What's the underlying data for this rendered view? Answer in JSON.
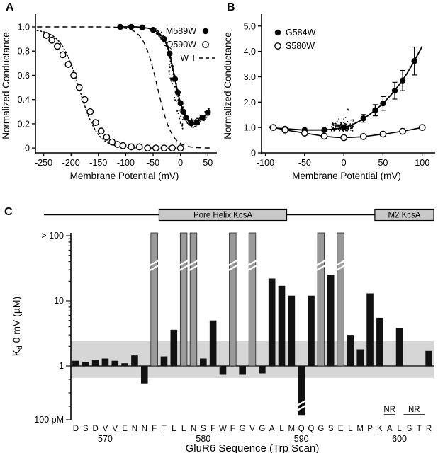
{
  "panels": {
    "a": {
      "label": "A"
    },
    "b": {
      "label": "B"
    },
    "c": {
      "label": "C"
    }
  },
  "chart_data": [
    {
      "panel": "A",
      "type": "line",
      "xlabel": "Membrane Potential (mV)",
      "ylabel": "Normalized Conductance",
      "xlim": [
        -265,
        60
      ],
      "ylim": [
        -0.04,
        1.07
      ],
      "x_ticks": [
        -250,
        -200,
        -150,
        -100,
        -50,
        0,
        50
      ],
      "x_tick_labels": [
        "-250",
        "-200",
        "-150",
        "-100",
        "-50",
        "0",
        "50"
      ],
      "y_ticks": [
        0,
        0.2,
        0.4,
        0.6,
        0.8,
        1.0
      ],
      "y_tick_labels": [
        "0",
        "0.2",
        "0.4",
        "0.6",
        "0.8",
        "1.0"
      ],
      "legend": [
        {
          "label": "M589W",
          "marker": "filled-circle"
        },
        {
          "label": "Q590W",
          "marker": "open-circle"
        },
        {
          "label": "W T",
          "marker": "dashed-line"
        }
      ],
      "series": [
        {
          "name": "WT",
          "style": "dashed",
          "fit": {
            "gmax": 1.0,
            "vhalf": -42,
            "k": 13,
            "from": -262,
            "to": 56
          }
        },
        {
          "name": "Q590W",
          "style": "dotted",
          "marker": "open-circle",
          "fit": {
            "gmax": 0.98,
            "vhalf": -185,
            "k": 17,
            "from": -262,
            "to": 5
          },
          "points": [
            [
              -245,
              0.93
            ],
            [
              -235,
              0.89
            ],
            [
              -225,
              0.84
            ],
            [
              -215,
              0.77
            ],
            [
              -205,
              0.69
            ],
            [
              -195,
              0.6
            ],
            [
              -185,
              0.5
            ],
            [
              -175,
              0.4
            ],
            [
              -165,
              0.3
            ],
            [
              -155,
              0.21
            ],
            [
              -145,
              0.14
            ],
            [
              -135,
              0.09
            ],
            [
              -125,
              0.05
            ],
            [
              -115,
              0.03
            ],
            [
              -105,
              0.02
            ],
            [
              -90,
              0.01
            ],
            [
              -75,
              0.01
            ],
            [
              -60,
              0.0
            ],
            [
              -45,
              0.0
            ],
            [
              -30,
              0.0
            ],
            [
              -15,
              0.0
            ],
            [
              0,
              0.0
            ]
          ]
        },
        {
          "name": "M589W",
          "style": "solid",
          "marker": "filled-circle",
          "line_points": [
            [
              -110,
              1.0
            ],
            [
              -100,
              1.0
            ],
            [
              -90,
              1.0
            ],
            [
              -80,
              1.0
            ],
            [
              -70,
              0.995
            ],
            [
              -60,
              0.99
            ],
            [
              -50,
              0.975
            ],
            [
              -45,
              0.965
            ],
            [
              -40,
              0.95
            ],
            [
              -35,
              0.93
            ],
            [
              -30,
              0.9
            ],
            [
              -25,
              0.85
            ],
            [
              -20,
              0.78
            ],
            [
              -15,
              0.68
            ],
            [
              -10,
              0.57
            ],
            [
              -5,
              0.46
            ],
            [
              0,
              0.37
            ],
            [
              5,
              0.3
            ],
            [
              10,
              0.25
            ],
            [
              15,
              0.22
            ],
            [
              20,
              0.205
            ],
            [
              25,
              0.2
            ],
            [
              30,
              0.21
            ],
            [
              35,
              0.23
            ],
            [
              40,
              0.25
            ],
            [
              45,
              0.27
            ],
            [
              50,
              0.29
            ]
          ],
          "points": [
            [
              -110,
              1.0
            ],
            [
              -90,
              1.0
            ],
            [
              -70,
              0.995
            ],
            [
              -50,
              0.975
            ],
            [
              -30,
              0.9
            ],
            [
              -20,
              0.78
            ],
            [
              -10,
              0.57
            ],
            [
              -5,
              0.46
            ],
            [
              0,
              0.37
            ],
            [
              5,
              0.3
            ],
            [
              10,
              0.25
            ],
            [
              20,
              0.205
            ],
            [
              30,
              0.21
            ],
            [
              40,
              0.25
            ],
            [
              50,
              0.29
            ]
          ]
        }
      ],
      "noise": {
        "seed": 17,
        "n": 150,
        "x_from": -44,
        "x_to": 54,
        "jitter": 0.035,
        "extra_n": 45,
        "extra_x_from": -22,
        "extra_x_to": 4,
        "extra_drop": 0.18
      }
    },
    {
      "panel": "B",
      "type": "line",
      "xlabel": "Membrane Potential (mV)",
      "ylabel": "Normalized Conductance",
      "xlim": [
        -105,
        112
      ],
      "ylim": [
        0,
        5.3
      ],
      "x_ticks": [
        -100,
        -50,
        0,
        50,
        100
      ],
      "x_tick_labels": [
        "-100",
        "-50",
        "0",
        "50",
        "100"
      ],
      "y_ticks": [
        0,
        1,
        2,
        3,
        4,
        5
      ],
      "y_tick_labels": [
        "0",
        "1.0",
        "2.0",
        "3.0",
        "4.0",
        "5.0"
      ],
      "legend": [
        {
          "label": "G584W",
          "marker": "filled-circle"
        },
        {
          "label": "S580W",
          "marker": "open-circle"
        }
      ],
      "series": [
        {
          "name": "G584W",
          "style": "solid",
          "marker": "filled-circle",
          "line_points": [
            [
              -95,
              1.0
            ],
            [
              -85,
              0.97
            ],
            [
              -75,
              0.95
            ],
            [
              -65,
              0.93
            ],
            [
              -55,
              0.91
            ],
            [
              -45,
              0.9
            ],
            [
              -35,
              0.9
            ],
            [
              -25,
              0.905
            ],
            [
              -15,
              0.93
            ],
            [
              -5,
              0.97
            ],
            [
              0,
              1.0
            ],
            [
              10,
              1.1
            ],
            [
              20,
              1.25
            ],
            [
              30,
              1.45
            ],
            [
              40,
              1.68
            ],
            [
              50,
              1.95
            ],
            [
              60,
              2.28
            ],
            [
              70,
              2.66
            ],
            [
              80,
              3.1
            ],
            [
              90,
              3.62
            ],
            [
              100,
              4.2
            ]
          ],
          "points": [
            [
              -90,
              1.0,
              0.07
            ],
            [
              -75,
              0.95,
              0.05
            ],
            [
              -50,
              0.9,
              0.05
            ],
            [
              -25,
              0.9,
              0.06
            ],
            [
              0,
              1.0,
              0.09
            ],
            [
              25,
              1.36,
              0.15
            ],
            [
              40,
              1.68,
              0.22
            ],
            [
              50,
              1.95,
              0.27
            ],
            [
              65,
              2.45,
              0.33
            ],
            [
              75,
              2.85,
              0.4
            ],
            [
              90,
              3.62,
              0.55
            ]
          ]
        },
        {
          "name": "S580W",
          "style": "solid",
          "marker": "open-circle",
          "line_points": [
            [
              -95,
              1.03
            ],
            [
              -90,
              1.0
            ],
            [
              -80,
              0.94
            ],
            [
              -70,
              0.88
            ],
            [
              -60,
              0.83
            ],
            [
              -50,
              0.78
            ],
            [
              -40,
              0.73
            ],
            [
              -30,
              0.68
            ],
            [
              -20,
              0.64
            ],
            [
              -10,
              0.61
            ],
            [
              0,
              0.6
            ],
            [
              10,
              0.61
            ],
            [
              20,
              0.63
            ],
            [
              30,
              0.66
            ],
            [
              40,
              0.7
            ],
            [
              50,
              0.74
            ],
            [
              60,
              0.78
            ],
            [
              70,
              0.83
            ],
            [
              80,
              0.88
            ],
            [
              90,
              0.94
            ],
            [
              100,
              1.0
            ]
          ],
          "points": [
            [
              -90,
              1.0
            ],
            [
              -75,
              0.9
            ],
            [
              -50,
              0.78
            ],
            [
              -25,
              0.66
            ],
            [
              0,
              0.6
            ],
            [
              25,
              0.645
            ],
            [
              50,
              0.74
            ],
            [
              75,
              0.85
            ],
            [
              100,
              1.0
            ]
          ]
        }
      ],
      "noise": {
        "seed": 29,
        "n": 130,
        "x_from": -16,
        "x_to": 13
      }
    },
    {
      "panel": "C",
      "type": "bar",
      "xlabel": "GluR6 Sequence (Trp Scan)",
      "ylabel_main": "K",
      "ylabel_sub": "d",
      "ylabel_rest": " 0 mV (µM)",
      "y_axis_labels": {
        "offscale": "> 100",
        "ten": "10",
        "one": "1",
        "bottom": "100 pM"
      },
      "band_kd": [
        0.13,
        2.4
      ],
      "schematic": {
        "boxes": [
          {
            "label": "Pore Helix KcsA",
            "from_index": 9,
            "to_index": 21
          },
          {
            "label": "M2 KcsA",
            "from_index": 31,
            "to_index": 36
          }
        ]
      },
      "nr_text": "NR",
      "nr_groups": [
        [
          32
        ],
        [
          34,
          35
        ]
      ],
      "position_labels": [
        {
          "text": "570",
          "index": 3
        },
        {
          "text": "580",
          "index": 13
        },
        {
          "text": "590",
          "index": 23
        },
        {
          "text": "600",
          "index": 33
        }
      ],
      "bars": [
        {
          "residue": "D",
          "position": 567,
          "kd_uM": 1.2
        },
        {
          "residue": "S",
          "position": 568,
          "kd_uM": 1.15
        },
        {
          "residue": "D",
          "position": 569,
          "kd_uM": 1.25
        },
        {
          "residue": "V",
          "position": 570,
          "kd_uM": 1.3
        },
        {
          "residue": "V",
          "position": 571,
          "kd_uM": 1.2
        },
        {
          "residue": "E",
          "position": 572,
          "kd_uM": 1.1
        },
        {
          "residue": "N",
          "position": 573,
          "kd_uM": 1.45
        },
        {
          "residue": "N",
          "position": 574,
          "kd_uM": 0.05
        },
        {
          "residue": "F",
          "position": 575,
          "offscale": true
        },
        {
          "residue": "T",
          "position": 576,
          "kd_uM": 1.4
        },
        {
          "residue": "L",
          "position": 577,
          "kd_uM": 3.6
        },
        {
          "residue": "L",
          "position": 578,
          "offscale": true
        },
        {
          "residue": "N",
          "position": 579,
          "offscale": true
        },
        {
          "residue": "S",
          "position": 580,
          "kd_uM": 1.3
        },
        {
          "residue": "F",
          "position": 581,
          "kd_uM": 5.0
        },
        {
          "residue": "W",
          "position": 582,
          "kd_uM": 0.22
        },
        {
          "residue": "F",
          "position": 583,
          "offscale": true
        },
        {
          "residue": "G",
          "position": 584,
          "kd_uM": 0.22
        },
        {
          "residue": "V",
          "position": 585,
          "offscale": true
        },
        {
          "residue": "G",
          "position": 586,
          "kd_uM": 0.28
        },
        {
          "residue": "A",
          "position": 587,
          "kd_uM": 22
        },
        {
          "residue": "L",
          "position": 588,
          "kd_uM": 17
        },
        {
          "residue": "M",
          "position": 589,
          "kd_uM": 12
        },
        {
          "residue": "Q",
          "position": 590,
          "kd_uM": 0.0002,
          "down_break": true
        },
        {
          "residue": "Q",
          "position": 591,
          "kd_uM": 12
        },
        {
          "residue": "G",
          "position": 592,
          "offscale": true
        },
        {
          "residue": "S",
          "position": 593,
          "kd_uM": 25
        },
        {
          "residue": "E",
          "position": 594,
          "offscale": true
        },
        {
          "residue": "L",
          "position": 595,
          "kd_uM": 3.0
        },
        {
          "residue": "M",
          "position": 596,
          "kd_uM": 1.8
        },
        {
          "residue": "P",
          "position": 597,
          "kd_uM": 13
        },
        {
          "residue": "K",
          "position": 598,
          "kd_uM": 5.5
        },
        {
          "residue": "A",
          "position": 599,
          "nr": true
        },
        {
          "residue": "L",
          "position": 600,
          "kd_uM": 3.8
        },
        {
          "residue": "S",
          "position": 601,
          "nr": true
        },
        {
          "residue": "T",
          "position": 602,
          "nr": true
        },
        {
          "residue": "R",
          "position": 603,
          "kd_uM": 1.7
        }
      ]
    }
  ]
}
